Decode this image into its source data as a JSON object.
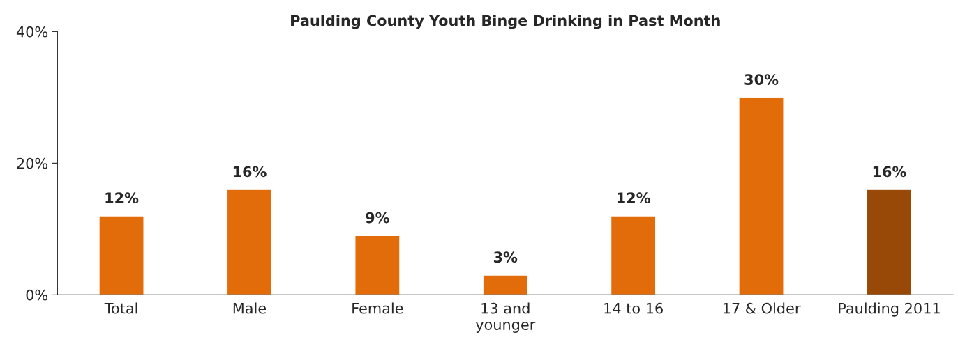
{
  "chart_data": {
    "type": "bar",
    "title": "Paulding County Youth Binge Drinking in Past Month",
    "categories": [
      "Total",
      "Male",
      "Female",
      "13 and\nyounger",
      "14 to 16",
      "17 & Older",
      "Paulding 2011"
    ],
    "values": [
      12,
      16,
      9,
      3,
      12,
      30,
      16
    ],
    "colors": [
      "#e36c0a",
      "#e36c0a",
      "#e36c0a",
      "#e36c0a",
      "#e36c0a",
      "#e36c0a",
      "#984807"
    ],
    "value_labels": [
      "12%",
      "16%",
      "9%",
      "3%",
      "12%",
      "30%",
      "16%"
    ],
    "ylim": [
      0,
      40
    ],
    "yticks": [
      {
        "value": 0,
        "label": "0%"
      },
      {
        "value": 20,
        "label": "20%"
      },
      {
        "value": 40,
        "label": "40%"
      }
    ],
    "grid": false,
    "legend": false
  }
}
